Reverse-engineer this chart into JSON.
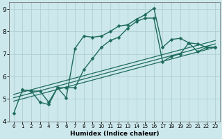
{
  "xlabel": "Humidex (Indice chaleur)",
  "bg_color": "#cce8ec",
  "grid_color": "#b0d0d4",
  "line_color": "#1e6b5a",
  "xlim": [
    -0.5,
    23.5
  ],
  "ylim": [
    4,
    9.3
  ],
  "xticks": [
    0,
    1,
    2,
    3,
    4,
    5,
    6,
    7,
    8,
    9,
    10,
    11,
    12,
    13,
    14,
    15,
    16,
    17,
    18,
    19,
    20,
    21,
    22,
    23
  ],
  "yticks": [
    4,
    5,
    6,
    7,
    8,
    9
  ],
  "series": [
    {
      "x": [
        0,
        1,
        2,
        3,
        4,
        5,
        6,
        7,
        8,
        9,
        10,
        11,
        12,
        13,
        14,
        15,
        16,
        17,
        18,
        19,
        20,
        21,
        22,
        23
      ],
      "y": [
        4.35,
        5.4,
        5.35,
        4.85,
        4.75,
        5.5,
        5.05,
        7.25,
        7.8,
        7.75,
        7.8,
        8.0,
        8.25,
        8.3,
        8.55,
        8.75,
        9.05,
        7.3,
        7.65,
        7.7,
        7.5,
        7.45,
        7.3,
        7.3
      ],
      "marker": "D",
      "markersize": 2.5,
      "linewidth": 1.0
    },
    {
      "x": [
        1,
        2,
        3,
        4,
        5,
        6,
        7,
        8,
        9,
        10,
        11,
        12,
        13,
        14,
        15,
        16,
        17,
        18,
        19,
        20,
        21,
        22,
        23
      ],
      "y": [
        5.4,
        5.35,
        5.35,
        4.85,
        5.5,
        5.5,
        5.5,
        6.3,
        6.8,
        7.3,
        7.6,
        7.75,
        8.15,
        8.45,
        8.6,
        8.6,
        6.65,
        6.9,
        7.0,
        7.5,
        7.1,
        7.3,
        7.3
      ],
      "marker": "D",
      "markersize": 2.5,
      "linewidth": 1.0
    },
    {
      "x": [
        0,
        23
      ],
      "y": [
        4.9,
        7.3
      ],
      "marker": null,
      "markersize": 0,
      "linewidth": 0.9
    },
    {
      "x": [
        0,
        23
      ],
      "y": [
        5.05,
        7.45
      ],
      "marker": null,
      "markersize": 0,
      "linewidth": 0.9
    },
    {
      "x": [
        0,
        23
      ],
      "y": [
        5.2,
        7.6
      ],
      "marker": null,
      "markersize": 0,
      "linewidth": 0.9
    }
  ]
}
